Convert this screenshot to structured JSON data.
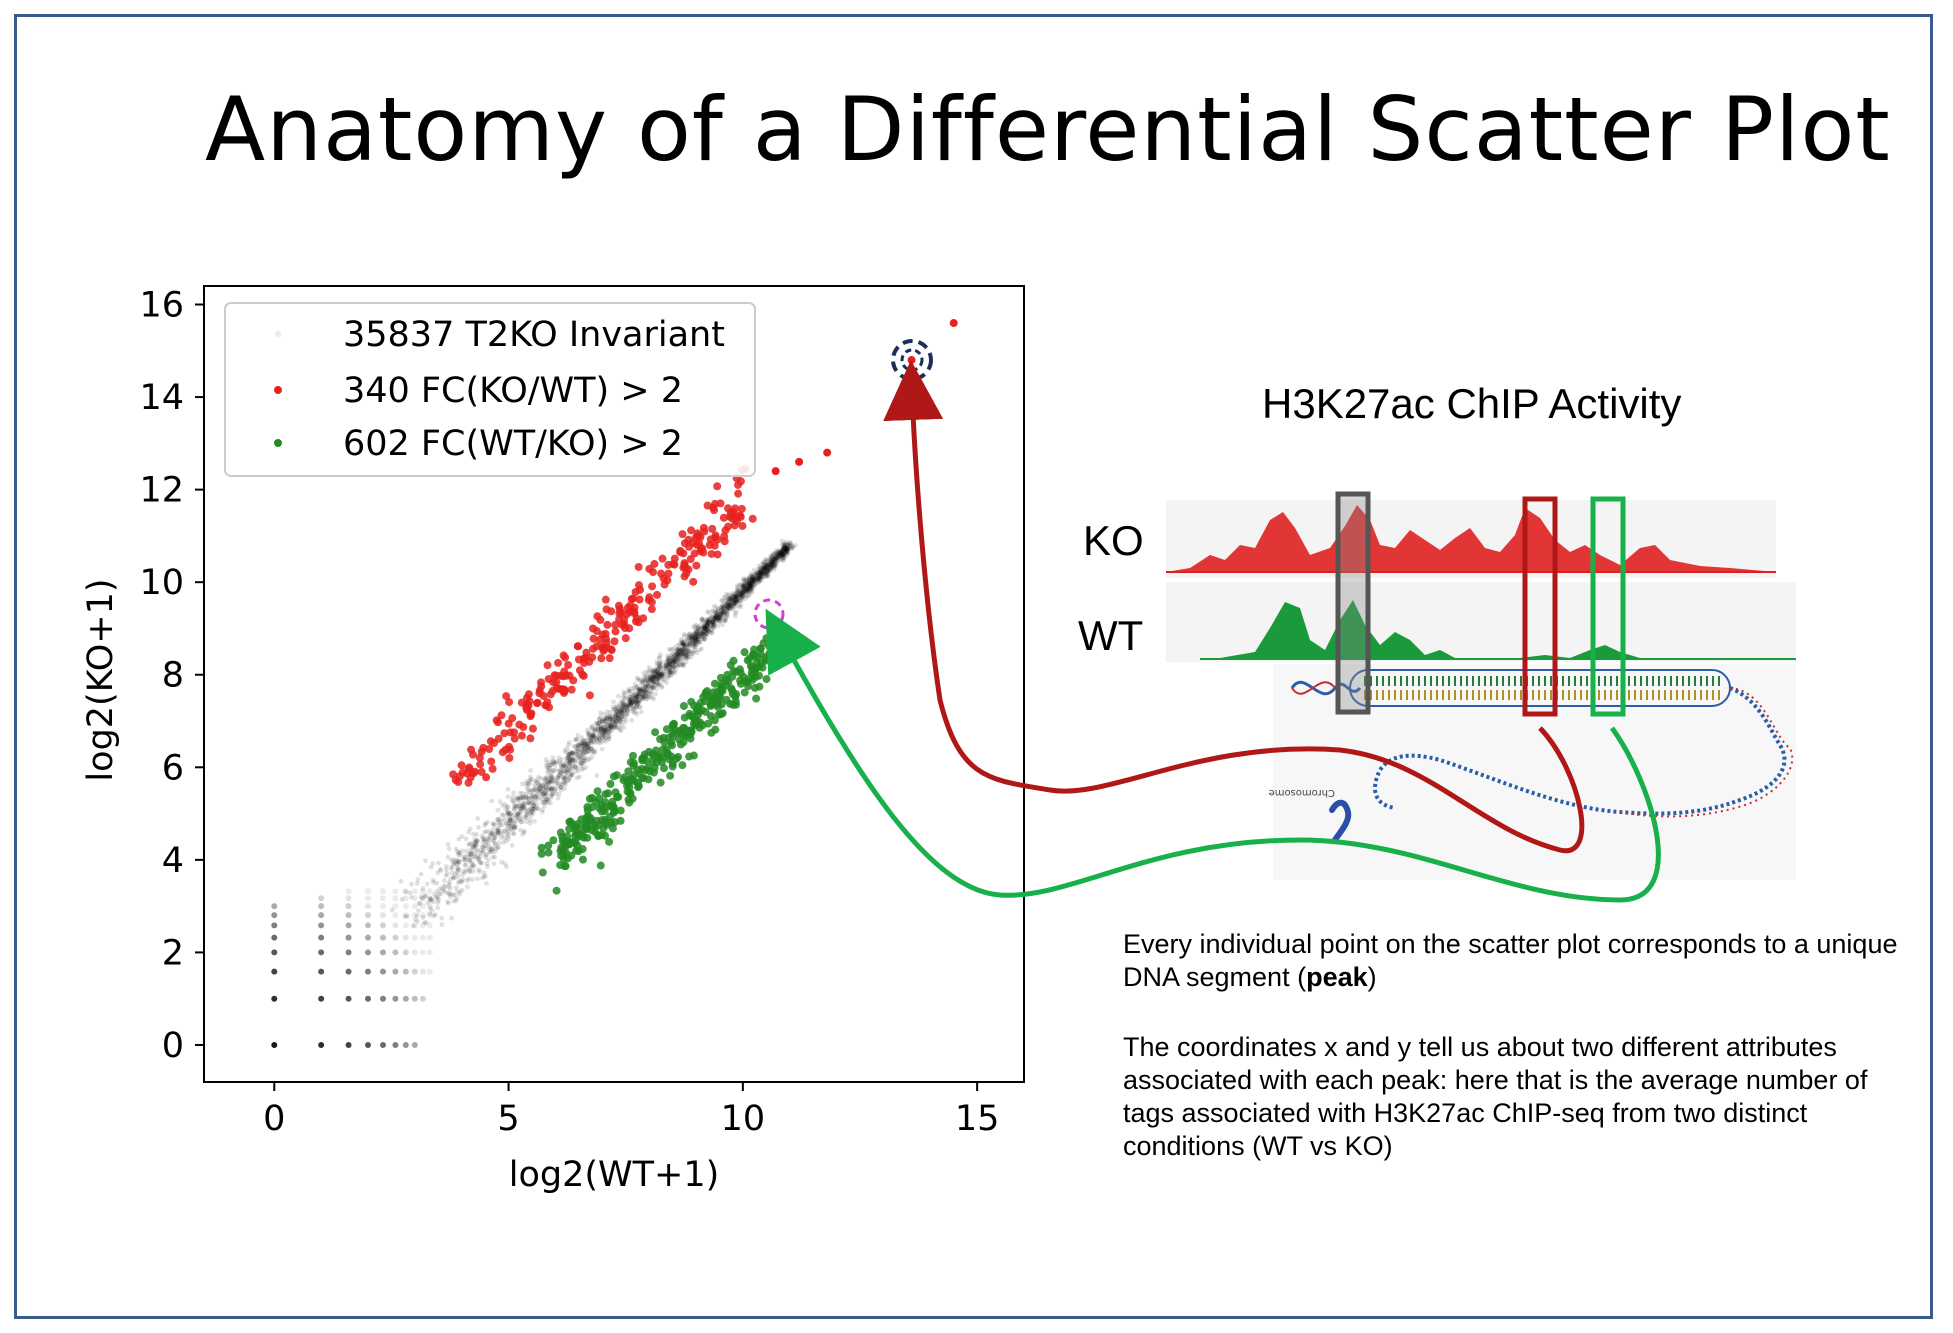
{
  "title": "Anatomy of a  Differential Scatter Plot",
  "chart_data": {
    "type": "scatter",
    "xlabel": "log2(WT+1)",
    "ylabel": "log2(KO+1)",
    "xlim": [
      -1.5,
      16
    ],
    "ylim": [
      -0.8,
      16.4
    ],
    "xticks": [
      0,
      5,
      10,
      15
    ],
    "yticks": [
      0,
      2,
      4,
      6,
      8,
      10,
      12,
      14,
      16
    ],
    "legend_position": "top-left",
    "series": [
      {
        "name": "35837 T2KO Invariant",
        "color": "#000000",
        "count": 35837
      },
      {
        "name": "340 FC(KO/WT) > 2",
        "color": "#e8211f",
        "count": 340
      },
      {
        "name": "602 FC(WT/KO) > 2",
        "color": "#228b22",
        "count": 602
      }
    ],
    "highlighted_points": [
      {
        "x": 13.6,
        "y": 14.8,
        "series": "340 FC(KO/WT) > 2"
      },
      {
        "x": 10.5,
        "y": 9.3,
        "series": "35837 T2KO Invariant"
      }
    ]
  },
  "chip": {
    "title": "H3K27ac ChIP Activity",
    "tracks": [
      {
        "label": "KO",
        "color": "#e02020"
      },
      {
        "label": "WT",
        "color": "#1a9a3a"
      }
    ],
    "region_colors": {
      "gray": "#555555",
      "red": "#b01818",
      "green": "#18b04a"
    },
    "chromosome_text": "Chromosome"
  },
  "description": {
    "p1_text": "Every individual point on the  scatter plot corresponds to a unique DNA segment (",
    "p1_bold": "peak",
    "p1_end": ")",
    "p2": "The coordinates x and y tell us about  two different attributes associated with each peak: here that is the average number of tags associated with H3K27ac ChIP-seq from two distinct conditions (WT vs KO)"
  },
  "colors": {
    "frame": "#3a5a8c",
    "ko_arrow": "#b01818",
    "wt_arrow": "#18b04a",
    "highlight": "#1c2f5a"
  }
}
